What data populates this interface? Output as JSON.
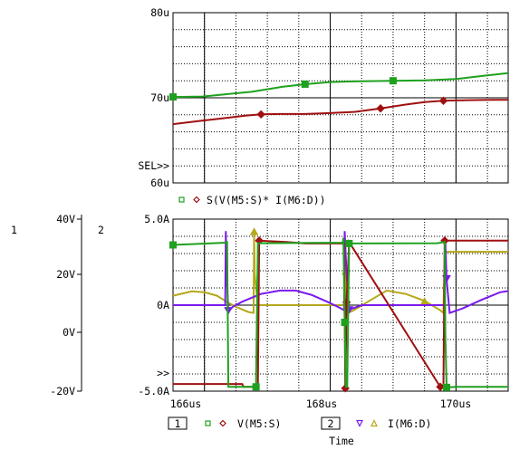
{
  "chart_data": [
    {
      "type": "line",
      "title": "",
      "xlabel": "",
      "ylabel": "",
      "xlim": [
        165.5,
        170.83
      ],
      "ylim": [
        60,
        80
      ],
      "yunit": "u",
      "yticks": [
        "80u",
        "70u",
        "60u"
      ],
      "ytick_values": [
        80,
        70,
        60
      ],
      "sel_marker": "SEL>>",
      "legend_text": "S(V(M5:S)* I(M6:D))",
      "grid": true,
      "series": [
        {
          "name": "",
          "color": "#1fa11f",
          "marker": "square",
          "x": [
            165.5,
            165.97,
            166.32,
            166.75,
            167.25,
            167.6,
            168.0,
            168.5,
            169.0,
            169.5,
            170.0,
            170.4,
            170.83
          ],
          "y": [
            70.1,
            70.15,
            70.4,
            70.7,
            71.3,
            71.6,
            71.85,
            71.95,
            72.0,
            72.05,
            72.2,
            72.55,
            72.9
          ]
        },
        {
          "name": "",
          "color": "#a01010",
          "marker": "diamond",
          "x": [
            165.5,
            165.9,
            166.3,
            166.65,
            166.9,
            167.2,
            167.6,
            168.0,
            168.4,
            168.8,
            169.2,
            169.5,
            169.8,
            170.2,
            170.6,
            170.83
          ],
          "y": [
            66.9,
            67.25,
            67.6,
            67.9,
            68.05,
            68.1,
            68.1,
            68.2,
            68.35,
            68.75,
            69.2,
            69.5,
            69.65,
            69.72,
            69.75,
            69.75
          ]
        }
      ]
    },
    {
      "type": "line",
      "title": "",
      "xlabel": "Time",
      "ylabel": "",
      "xlim": [
        165.5,
        170.83
      ],
      "xticks": [
        "166us",
        "168us",
        "170us"
      ],
      "xtick_values": [
        166,
        168,
        170
      ],
      "grid": true,
      "axis1": {
        "label": "1",
        "ylim": [
          -20,
          40
        ],
        "yticks": [
          "40V",
          "20V",
          "0V",
          "-20V"
        ],
        "ytick_values": [
          40,
          20,
          0,
          -20
        ]
      },
      "axis2": {
        "label": "2",
        "ylim": [
          -5,
          5
        ],
        "yticks": [
          "5.0A",
          "0A",
          "-5.0A"
        ],
        "ytick_values": [
          5,
          0,
          -5
        ]
      },
      "sel_marker": ">>",
      "legend": {
        "group1_box": "1",
        "group1_text": "V(M5:S)",
        "group2_box": "2",
        "group2_text": "I(M6:D)"
      },
      "series": [
        {
          "name": "V(M5:S)",
          "axis": 1,
          "color": "#1fa11f",
          "marker": "square",
          "x": [
            165.5,
            166.35,
            166.36,
            166.38,
            166.8,
            166.82,
            166.85,
            168.2,
            168.21,
            168.23,
            168.25,
            168.27,
            168.3,
            169.7,
            169.82,
            169.83,
            169.85,
            170.0,
            170.83
          ],
          "y": [
            31,
            31.8,
            32.3,
            -18.5,
            -18.5,
            -18.5,
            31.6,
            31.8,
            33.5,
            4,
            -18.5,
            -18.5,
            31.5,
            31.6,
            32,
            0,
            -18.7,
            -18.5,
            -18.5
          ]
        },
        {
          "name": "V(M5:S)",
          "axis": 1,
          "color": "#a01010",
          "marker": "diamond",
          "x": [
            165.5,
            166.55,
            166.6,
            166.62,
            166.8,
            166.85,
            166.87,
            167.3,
            167.6,
            168.2,
            168.22,
            168.24,
            168.26,
            168.3,
            169.75,
            169.8,
            169.82,
            170.83
          ],
          "y": [
            -17.5,
            -17.5,
            -17.5,
            -18.5,
            -18.5,
            -18,
            32.5,
            32,
            31.5,
            31.5,
            31.5,
            -19,
            11,
            32,
            -18.5,
            -18.5,
            32.5,
            32.5
          ]
        },
        {
          "name": "I(M6:D)",
          "axis": 2,
          "color": "#7a19ee",
          "marker": "triangle-down",
          "x": [
            165.5,
            166.33,
            166.34,
            166.35,
            166.38,
            166.45,
            166.6,
            166.9,
            167.2,
            167.45,
            167.7,
            167.95,
            168.15,
            168.22,
            168.23,
            168.26,
            168.3,
            168.35,
            168.5,
            169.7,
            169.82,
            169.83,
            169.85,
            169.9,
            170.1,
            170.4,
            170.7,
            170.83
          ],
          "y": [
            0,
            0,
            4.3,
            2.0,
            -0.35,
            -0.1,
            0.2,
            0.65,
            0.85,
            0.85,
            0.6,
            0.2,
            -0.15,
            -0.3,
            4.3,
            1.8,
            -0.3,
            -0.2,
            0,
            0,
            0,
            3.7,
            1.5,
            -0.45,
            -0.2,
            0.3,
            0.75,
            0.82
          ]
        },
        {
          "name": "I(M6:D)",
          "axis": 2,
          "color": "#b5a81b",
          "marker": "triangle-up",
          "x": [
            165.5,
            165.8,
            166.0,
            166.2,
            166.35,
            166.5,
            166.7,
            166.78,
            166.79,
            166.8,
            166.85,
            167.2,
            168.24,
            168.25,
            168.28,
            168.35,
            168.6,
            168.9,
            169.2,
            169.5,
            169.75,
            169.8,
            169.82,
            169.84,
            170.0,
            170.83
          ],
          "y": [
            0.55,
            0.8,
            0.75,
            0.55,
            0.2,
            -0.1,
            -0.4,
            -0.45,
            4.3,
            1.8,
            0,
            0,
            0,
            2.0,
            -0.45,
            -0.35,
            0.2,
            0.85,
            0.65,
            0.25,
            -0.3,
            -0.45,
            2.9,
            3.1,
            3.1,
            3.1
          ]
        }
      ]
    }
  ]
}
